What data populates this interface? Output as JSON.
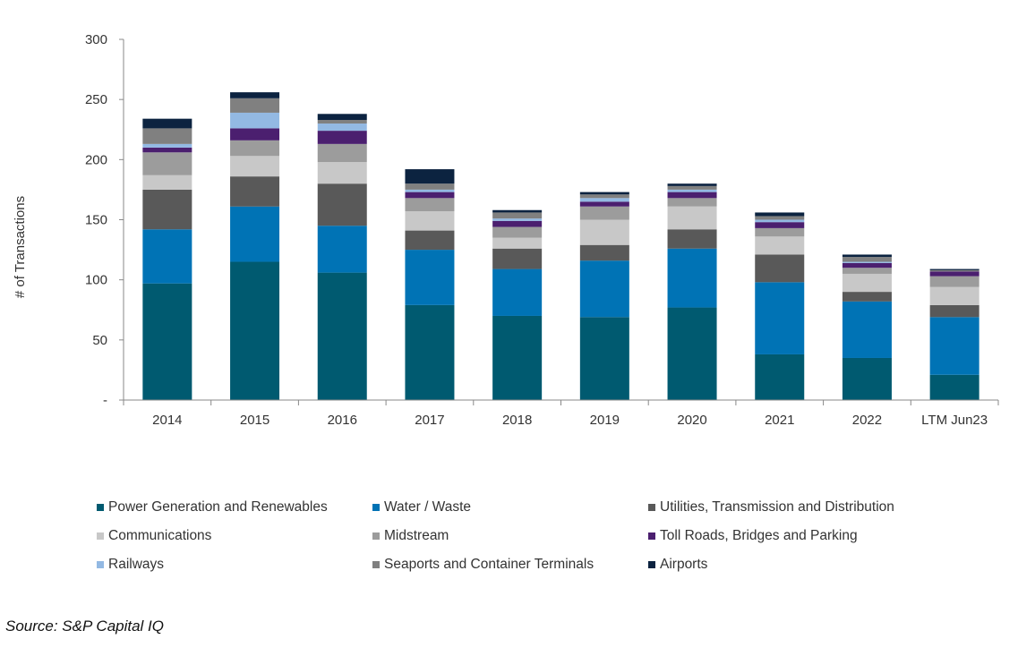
{
  "chart_data": {
    "type": "bar",
    "stacked": true,
    "categories": [
      "2014",
      "2015",
      "2016",
      "2017",
      "2018",
      "2019",
      "2020",
      "2021",
      "2022",
      "LTM Jun23"
    ],
    "ylabel": "# of Transactions",
    "xlabel": "",
    "ylim": [
      0,
      300
    ],
    "yticks": [
      0,
      50,
      100,
      150,
      200,
      250,
      300
    ],
    "ytick_labels": [
      "-",
      "50",
      "100",
      "150",
      "200",
      "250",
      "300"
    ],
    "grid": false,
    "legend_position": "bottom",
    "series": [
      {
        "name": "Power Generation and Renewables",
        "color": "#005a70",
        "values": [
          97,
          115,
          106,
          79,
          70,
          69,
          77,
          38,
          35,
          21
        ]
      },
      {
        "name": "Water / Waste",
        "color": "#0073b5",
        "values": [
          45,
          46,
          39,
          46,
          39,
          47,
          49,
          60,
          47,
          48
        ]
      },
      {
        "name": "Utilities, Transmission and Distribution",
        "color": "#595959",
        "values": [
          33,
          25,
          35,
          16,
          17,
          13,
          16,
          23,
          8,
          10
        ]
      },
      {
        "name": "Communications",
        "color": "#c8c8c8",
        "values": [
          12,
          17,
          18,
          16,
          9,
          21,
          19,
          15,
          15,
          15
        ]
      },
      {
        "name": "Midstream",
        "color": "#9c9c9c",
        "values": [
          19,
          13,
          15,
          11,
          9,
          11,
          7,
          7,
          5,
          9
        ]
      },
      {
        "name": "Toll Roads, Bridges and Parking",
        "color": "#4b1f6f",
        "values": [
          4,
          10,
          11,
          5,
          5,
          4,
          5,
          5,
          4,
          4
        ]
      },
      {
        "name": "Railways",
        "color": "#93b9e3",
        "values": [
          3,
          13,
          6,
          2,
          2,
          3,
          2,
          2,
          1,
          0
        ]
      },
      {
        "name": "Seaports and Container Terminals",
        "color": "#808080",
        "values": [
          13,
          12,
          3,
          5,
          5,
          3,
          3,
          3,
          4,
          1
        ]
      },
      {
        "name": "Airports",
        "color": "#0c2340",
        "values": [
          8,
          5,
          5,
          12,
          2,
          2,
          2,
          3,
          2,
          1
        ]
      }
    ]
  },
  "source_text": "Source: S&P Capital IQ"
}
